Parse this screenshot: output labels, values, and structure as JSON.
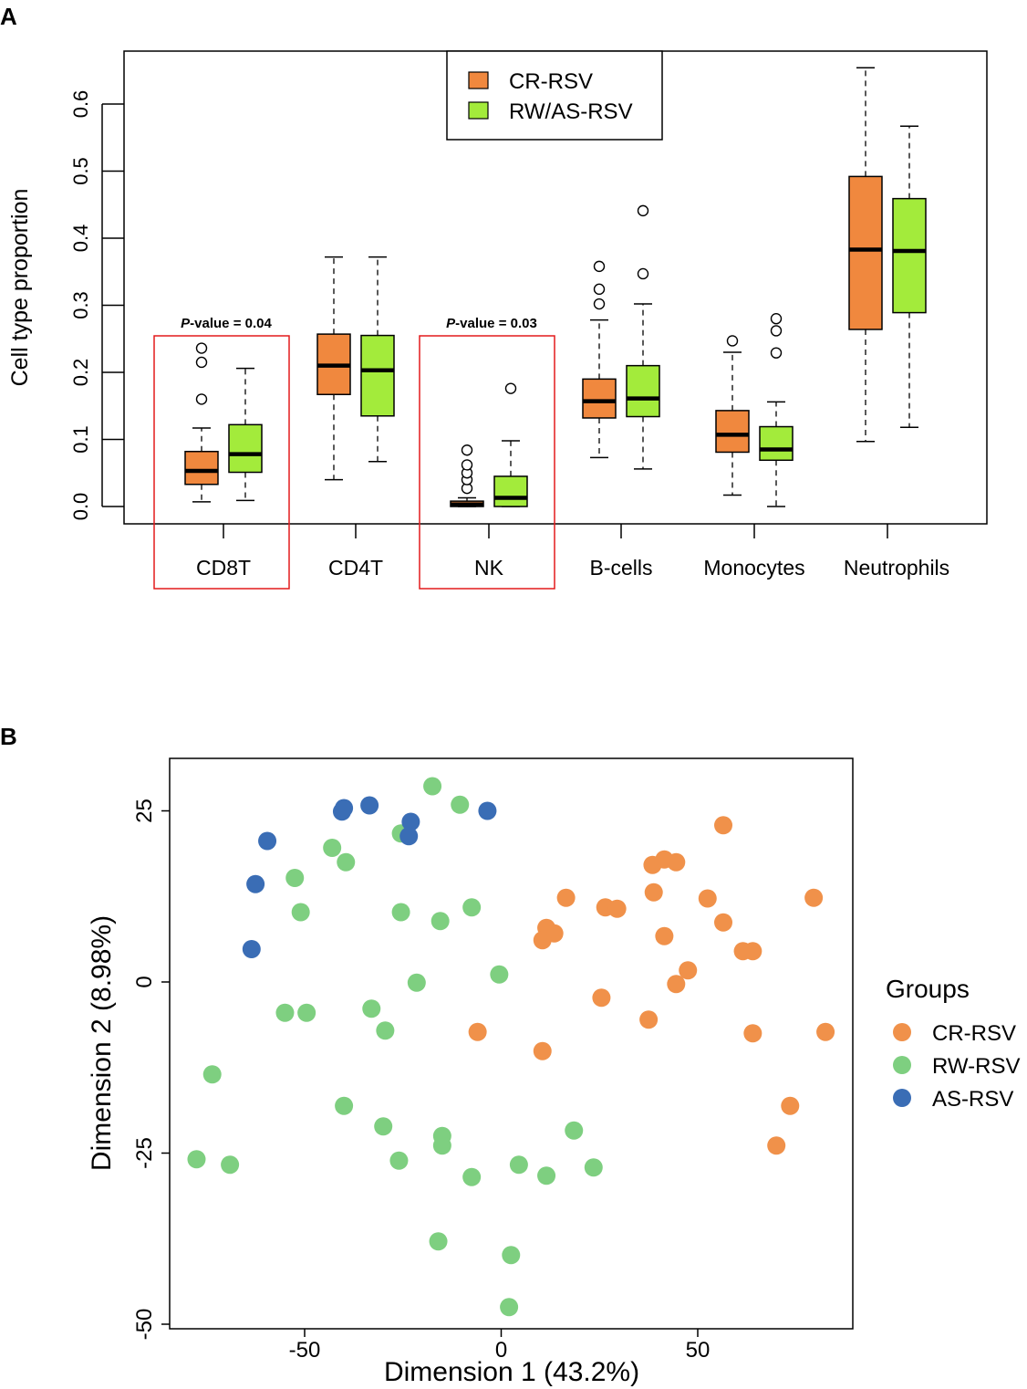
{
  "panel_a": {
    "letter": "A",
    "chart_data": {
      "type": "boxplot",
      "ylabel": "Cell type proportion",
      "ylim": [
        -0.02,
        0.7
      ],
      "yticks": [
        "0.0",
        "0.1",
        "0.2",
        "0.3",
        "0.4",
        "0.5",
        "0.6"
      ],
      "categories": [
        "CD8T",
        "CD4T",
        "NK",
        "B-cells",
        "Monocytes",
        "Neutrophils"
      ],
      "legend": [
        {
          "name": "CR-RSV",
          "color": "#F0883E"
        },
        {
          "name": "RW/AS-RSV",
          "color": "#A3EB3B"
        }
      ],
      "series": [
        {
          "name": "CR-RSV",
          "color": "#F0883E",
          "boxes": [
            {
              "category": "CD8T",
              "whisker_low": 0.007,
              "q1": 0.033,
              "median": 0.053,
              "q3": 0.082,
              "whisker_high": 0.117,
              "outliers": [
                0.16,
                0.215,
                0.236
              ]
            },
            {
              "category": "CD4T",
              "whisker_low": 0.04,
              "q1": 0.167,
              "median": 0.21,
              "q3": 0.257,
              "whisker_high": 0.372,
              "outliers": []
            },
            {
              "category": "NK",
              "whisker_low": 0.0,
              "q1": 0.0,
              "median": 0.003,
              "q3": 0.008,
              "whisker_high": 0.013,
              "outliers": [
                0.027,
                0.04,
                0.05,
                0.062,
                0.084
              ]
            },
            {
              "category": "B-cells",
              "whisker_low": 0.073,
              "q1": 0.132,
              "median": 0.157,
              "q3": 0.19,
              "whisker_high": 0.278,
              "outliers": [
                0.302,
                0.324,
                0.358
              ]
            },
            {
              "category": "Monocytes",
              "whisker_low": 0.017,
              "q1": 0.081,
              "median": 0.107,
              "q3": 0.143,
              "whisker_high": 0.23,
              "outliers": [
                0.247
              ]
            },
            {
              "category": "Neutrophils",
              "whisker_low": 0.097,
              "q1": 0.264,
              "median": 0.383,
              "q3": 0.492,
              "whisker_high": 0.654,
              "outliers": []
            }
          ]
        },
        {
          "name": "RW/AS-RSV",
          "color": "#A3EB3B",
          "boxes": [
            {
              "category": "CD8T",
              "whisker_low": 0.009,
              "q1": 0.051,
              "median": 0.078,
              "q3": 0.122,
              "whisker_high": 0.206,
              "outliers": []
            },
            {
              "category": "CD4T",
              "whisker_low": 0.067,
              "q1": 0.135,
              "median": 0.203,
              "q3": 0.255,
              "whisker_high": 0.372,
              "outliers": []
            },
            {
              "category": "NK",
              "whisker_low": 0.0,
              "q1": 0.0,
              "median": 0.013,
              "q3": 0.045,
              "whisker_high": 0.098,
              "outliers": [
                0.176
              ]
            },
            {
              "category": "B-cells",
              "whisker_low": 0.056,
              "q1": 0.134,
              "median": 0.161,
              "q3": 0.21,
              "whisker_high": 0.302,
              "outliers": [
                0.347,
                0.441
              ]
            },
            {
              "category": "Monocytes",
              "whisker_low": 0.0,
              "q1": 0.069,
              "median": 0.085,
              "q3": 0.119,
              "whisker_high": 0.156,
              "outliers": [
                0.229,
                0.262,
                0.28
              ]
            },
            {
              "category": "Neutrophils",
              "whisker_low": 0.118,
              "q1": 0.289,
              "median": 0.381,
              "q3": 0.459,
              "whisker_high": 0.567,
              "outliers": []
            }
          ]
        }
      ],
      "annotations": [
        {
          "category": "CD8T",
          "label_italic": "P",
          "label_rest": "-value  = 0.04"
        },
        {
          "category": "NK",
          "label_italic": "P",
          "label_rest": "-value  = 0.03"
        }
      ]
    }
  },
  "panel_b": {
    "letter": "B",
    "chart_data": {
      "type": "scatter",
      "xlabel": "Dimension 1 (43.2%)",
      "ylabel": "Dimension 2 (8.98%)",
      "xlim": [
        -85,
        90
      ],
      "ylim": [
        -51,
        32.5
      ],
      "xticks": [
        "-50",
        "0",
        "50"
      ],
      "yticks": [
        "-50",
        "-25",
        "0",
        "25"
      ],
      "legend_title": "Groups",
      "series": [
        {
          "name": "CR-RSV",
          "color": "#F0914A",
          "points": [
            [
              56.5,
              22.9
            ],
            [
              38.5,
              17.1
            ],
            [
              41.5,
              17.9
            ],
            [
              44.5,
              17.5
            ],
            [
              38.8,
              13.1
            ],
            [
              16.5,
              12.3
            ],
            [
              26.5,
              10.9
            ],
            [
              29.5,
              10.7
            ],
            [
              52.5,
              12.2
            ],
            [
              79.5,
              12.3
            ],
            [
              11.5,
              7.9
            ],
            [
              13.5,
              7.1
            ],
            [
              10.5,
              6.1
            ],
            [
              41.5,
              6.7
            ],
            [
              56.5,
              8.7
            ],
            [
              61.5,
              4.5
            ],
            [
              64.0,
              4.5
            ],
            [
              47.5,
              1.7
            ],
            [
              44.5,
              -0.3
            ],
            [
              25.5,
              -2.3
            ],
            [
              37.5,
              -5.5
            ],
            [
              -6.0,
              -7.3
            ],
            [
              64.0,
              -7.5
            ],
            [
              82.5,
              -7.3
            ],
            [
              10.5,
              -10.1
            ],
            [
              73.5,
              -18.1
            ],
            [
              70.0,
              -23.9
            ]
          ]
        },
        {
          "name": "RW-RSV",
          "color": "#7ECF80",
          "points": [
            [
              -17.5,
              28.6
            ],
            [
              -10.5,
              25.9
            ],
            [
              -43.0,
              19.6
            ],
            [
              -39.5,
              17.5
            ],
            [
              -25.5,
              21.7
            ],
            [
              -52.5,
              15.2
            ],
            [
              -51.0,
              10.2
            ],
            [
              -25.5,
              10.2
            ],
            [
              -15.5,
              8.9
            ],
            [
              -7.5,
              10.9
            ],
            [
              -21.5,
              -0.1
            ],
            [
              -0.5,
              1.1
            ],
            [
              -55.0,
              -4.5
            ],
            [
              -49.5,
              -4.5
            ],
            [
              -33.0,
              -3.9
            ],
            [
              -29.5,
              -7.1
            ],
            [
              -73.5,
              -13.5
            ],
            [
              -40.0,
              -18.1
            ],
            [
              -30.0,
              -21.1
            ],
            [
              18.5,
              -21.7
            ],
            [
              -15.0,
              -22.5
            ],
            [
              -15.0,
              -23.9
            ],
            [
              -77.5,
              -25.9
            ],
            [
              -69.0,
              -26.7
            ],
            [
              -26.0,
              -26.1
            ],
            [
              4.5,
              -26.7
            ],
            [
              23.5,
              -27.1
            ],
            [
              -7.5,
              -28.5
            ],
            [
              11.5,
              -28.3
            ],
            [
              -16.0,
              -37.9
            ],
            [
              2.5,
              -39.9
            ],
            [
              2.0,
              -47.5
            ]
          ]
        },
        {
          "name": "AS-RSV",
          "color": "#3A6DB5",
          "points": [
            [
              -40.5,
              24.9
            ],
            [
              -40.0,
              25.4
            ],
            [
              -33.5,
              25.8
            ],
            [
              -3.5,
              25.0
            ],
            [
              -23.0,
              23.4
            ],
            [
              -23.5,
              21.3
            ],
            [
              -59.5,
              20.6
            ],
            [
              -62.5,
              14.3
            ],
            [
              -63.5,
              4.8
            ]
          ]
        }
      ]
    }
  }
}
